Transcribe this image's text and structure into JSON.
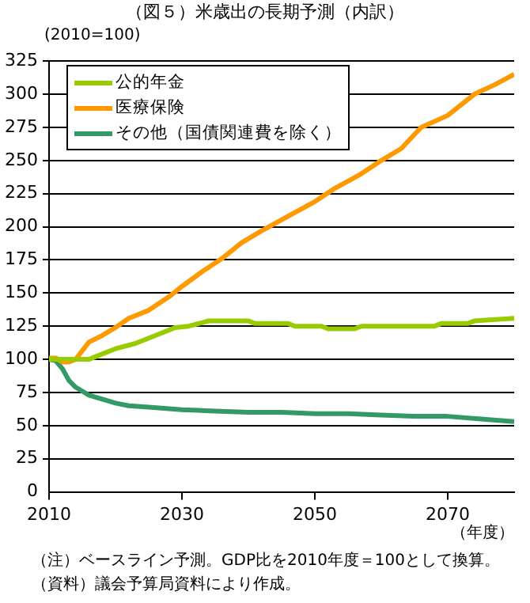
{
  "chart_data": {
    "type": "line",
    "title": "（図５）米歳出の長期予測（内訳）",
    "ylabel": "(2010=100)",
    "xlabel": "（年度）",
    "annotations": [
      "（注）ベースライン予測。GDP比を2010年度＝100として換算。",
      "（資料）議会予算局資料により作成。"
    ],
    "xlim": [
      2010,
      2080
    ],
    "xticks": [
      2010,
      2030,
      2050,
      2070
    ],
    "ylim": [
      0,
      325
    ],
    "yticks": [
      0,
      25,
      50,
      75,
      100,
      125,
      150,
      175,
      200,
      225,
      250,
      275,
      300,
      325
    ],
    "grid": "y",
    "legend": "top left",
    "marker": "none",
    "line_style": "solid",
    "series": [
      {
        "name": "公的年金",
        "color": "#99cc00",
        "x": [
          2010,
          2012,
          2016,
          2018,
          2020,
          2023,
          2026,
          2029,
          2031,
          2034,
          2040,
          2041,
          2046,
          2047,
          2051,
          2052,
          2056,
          2057,
          2068,
          2069,
          2073,
          2074,
          2080
        ],
        "values": [
          100,
          100,
          100,
          104,
          108,
          112,
          118,
          124,
          125,
          129,
          129,
          127,
          127,
          125,
          125,
          123,
          123,
          125,
          125,
          127,
          127,
          129,
          131
        ]
      },
      {
        "name": "医療保険",
        "color": "#ff9900",
        "x": [
          2010,
          2011,
          2012,
          2013,
          2014,
          2016,
          2018,
          2020,
          2022,
          2025,
          2028,
          2030,
          2033,
          2036,
          2039,
          2042,
          2046,
          2050,
          2053,
          2057,
          2060,
          2063,
          2066,
          2070,
          2074,
          2077,
          2080
        ],
        "values": [
          101,
          101,
          98,
          98,
          100,
          113,
          118,
          124,
          131,
          137,
          147,
          155,
          166,
          176,
          188,
          197,
          208,
          219,
          229,
          240,
          250,
          259,
          275,
          284,
          300,
          307,
          315
        ]
      },
      {
        "name": "その他（国債関連費を除く）",
        "color": "#339966",
        "x": [
          2010,
          2011,
          2012,
          2013,
          2014,
          2015,
          2016,
          2018,
          2020,
          2022,
          2025,
          2030,
          2035,
          2040,
          2045,
          2050,
          2055,
          2060,
          2065,
          2070,
          2075,
          2080
        ],
        "values": [
          100,
          99,
          93,
          84,
          79,
          76,
          73,
          70,
          67,
          65,
          64,
          62,
          61,
          60,
          60,
          59,
          59,
          58,
          57,
          57,
          55,
          53
        ]
      }
    ]
  }
}
